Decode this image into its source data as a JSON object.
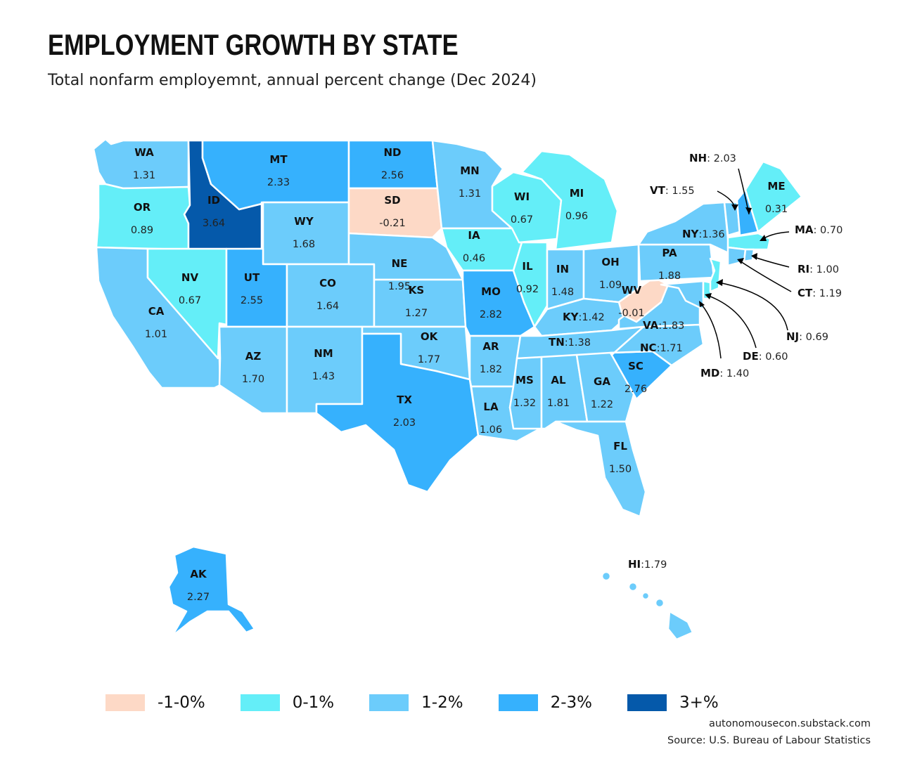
{
  "title": "EMPLOYMENT GROWTH BY STATE",
  "subtitle": "Total nonfarm employemnt, annual percent change (Dec 2024)",
  "colors": {
    "neg": "#fdd9c6",
    "low": "#64eef8",
    "mid": "#6cccfb",
    "high": "#36b1fd",
    "top": "#0559aa"
  },
  "legend": [
    {
      "label": "-1-0%",
      "color": "#fdd9c6"
    },
    {
      "label": "0-1%",
      "color": "#64eef8"
    },
    {
      "label": "1-2%",
      "color": "#6cccfb"
    },
    {
      "label": "2-3%",
      "color": "#36b1fd"
    },
    {
      "label": "3+%",
      "color": "#0559aa"
    }
  ],
  "states": {
    "WA": "1.31",
    "OR": "0.89",
    "CA": "1.01",
    "ID": "3.64",
    "NV": "0.67",
    "MT": "2.33",
    "WY": "1.68",
    "UT": "2.55",
    "AZ": "1.70",
    "CO": "1.64",
    "NM": "1.43",
    "ND": "2.56",
    "SD": "-0.21",
    "NE": "1.95",
    "KS": "1.27",
    "OK": "1.77",
    "TX": "2.03",
    "MN": "1.31",
    "IA": "0.46",
    "MO": "2.82",
    "AR": "1.82",
    "LA": "1.06",
    "WI": "0.67",
    "IL": "0.92",
    "MI": "0.96",
    "IN": "1.48",
    "OH": "1.09",
    "KY": "1.42",
    "TN": "1.38",
    "MS": "1.32",
    "AL": "1.81",
    "GA": "1.22",
    "FL": "1.50",
    "SC": "2.76",
    "NC": "1.71",
    "VA": "1.83",
    "WV": "-0.01",
    "PA": "1.88",
    "NY": "1.36",
    "ME": "0.31",
    "NH": "2.03",
    "VT": "1.55",
    "MA": "0.70",
    "RI": "1.00",
    "CT": "1.19",
    "NJ": "0.69",
    "DE": "0.60",
    "MD": "1.40",
    "AK": "2.27",
    "HI": "1.79"
  },
  "credit": {
    "site": "autonomousecon.substack.com",
    "source": "Source: U.S. Bureau of Labour Statistics"
  }
}
